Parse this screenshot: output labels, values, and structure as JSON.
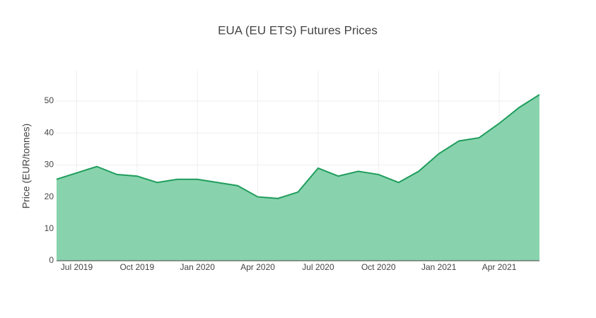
{
  "chart_data": {
    "type": "area",
    "title": "EUA (EU ETS) Futures Prices",
    "y_label": "Price (EUR/tonnes)",
    "x": [
      "2019-06",
      "2019-07",
      "2019-08",
      "2019-09",
      "2019-10",
      "2019-11",
      "2019-12",
      "2020-01",
      "2020-02",
      "2020-03",
      "2020-04",
      "2020-05",
      "2020-06",
      "2020-07",
      "2020-08",
      "2020-09",
      "2020-10",
      "2020-11",
      "2020-12",
      "2021-01",
      "2021-02",
      "2021-03",
      "2021-04",
      "2021-05",
      "2021-06"
    ],
    "series": [
      {
        "name": "EUA",
        "color": "#1f9d5c",
        "fill": "#88d3ad",
        "values": [
          25.5,
          27.5,
          29.5,
          27,
          26.5,
          24.5,
          25.5,
          25.5,
          24.5,
          23.5,
          20,
          19.5,
          21.5,
          29,
          26.5,
          28,
          27,
          24.5,
          28,
          33.5,
          37.5,
          38.5,
          43,
          48,
          52
        ]
      }
    ],
    "xlim": [
      "2019-06",
      "2021-06"
    ],
    "xticks": [
      {
        "value": "2019-07",
        "label": "Jul 2019"
      },
      {
        "value": "2019-10",
        "label": "Oct 2019"
      },
      {
        "value": "2020-01",
        "label": "Jan 2020"
      },
      {
        "value": "2020-04",
        "label": "Apr 2020"
      },
      {
        "value": "2020-07",
        "label": "Jul 2020"
      },
      {
        "value": "2020-10",
        "label": "Oct 2020"
      },
      {
        "value": "2021-01",
        "label": "Jan 2021"
      },
      {
        "value": "2021-04",
        "label": "Apr 2021"
      }
    ],
    "ylim": [
      0,
      59.5
    ],
    "yticks": [
      0,
      10,
      20,
      30,
      40,
      50
    ],
    "grid": true
  }
}
